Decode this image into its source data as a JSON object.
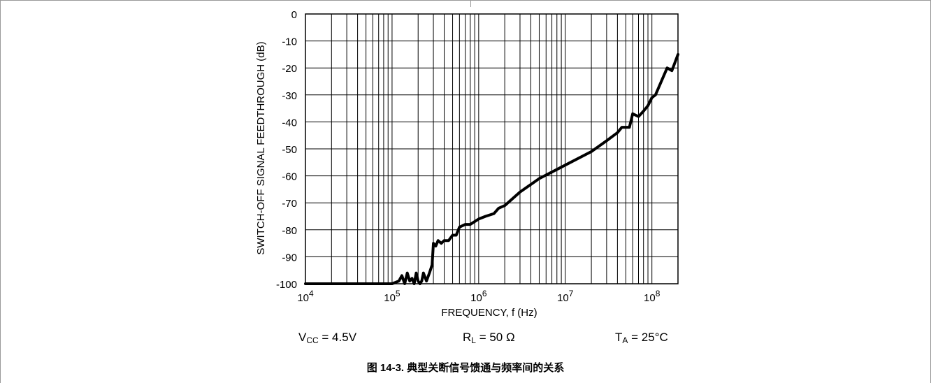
{
  "chart_data": {
    "type": "line",
    "title": "",
    "xlabel": "FREQUENCY, f (Hz)",
    "ylabel": "SWITCH-OFF SIGNAL FEEDTHROUGH (dB)",
    "x_scale": "log",
    "xlim": [
      10000,
      200000000
    ],
    "ylim": [
      -100,
      0
    ],
    "grid": true,
    "legend": "none",
    "x_ticks": [
      {
        "value": 10000,
        "base": "10",
        "exp": "4"
      },
      {
        "value": 100000,
        "base": "10",
        "exp": "5"
      },
      {
        "value": 1000000,
        "base": "10",
        "exp": "6"
      },
      {
        "value": 10000000,
        "base": "10",
        "exp": "7"
      },
      {
        "value": 100000000,
        "base": "10",
        "exp": "8"
      }
    ],
    "y_ticks": [
      "0",
      "-10",
      "-20",
      "-30",
      "-40",
      "-50",
      "-60",
      "-70",
      "-80",
      "-90",
      "-100"
    ],
    "y_tick_values": [
      0,
      -10,
      -20,
      -30,
      -40,
      -50,
      -60,
      -70,
      -80,
      -90,
      -100
    ],
    "series": [
      {
        "color": "#000000",
        "x": [
          10000,
          100000,
          120000,
          130000,
          140000,
          150000,
          160000,
          170000,
          180000,
          190000,
          200000,
          210000,
          220000,
          230000,
          250000,
          270000,
          290000,
          300000,
          320000,
          340000,
          370000,
          400000,
          450000,
          500000,
          550000,
          600000,
          700000,
          800000,
          1000000,
          1200000,
          1500000,
          1700000,
          2000000,
          3000000,
          5000000,
          10000000,
          20000000,
          30000000,
          40000000,
          45000000,
          55000000,
          60000000,
          70000000,
          80000000,
          90000000,
          100000000,
          110000000,
          150000000,
          170000000,
          200000000
        ],
        "y": [
          -100,
          -100,
          -99,
          -97,
          -100,
          -96,
          -99,
          -98,
          -100,
          -96,
          -99,
          -100,
          -99,
          -96,
          -99,
          -96,
          -93,
          -85,
          -86,
          -84,
          -85,
          -84,
          -84,
          -82,
          -82,
          -79,
          -78,
          -78,
          -76,
          -75,
          -74,
          -72,
          -71,
          -66,
          -61,
          -56,
          -51,
          -47,
          -44,
          -42,
          -42,
          -37,
          -38,
          -36,
          -34,
          -31,
          -30,
          -20,
          -21,
          -15
        ]
      }
    ]
  },
  "conditions": {
    "vcc": {
      "main": "V",
      "sub": "CC",
      "rest": " = 4.5V"
    },
    "rl": {
      "main": "R",
      "sub": "L",
      "rest": " = 50 Ω"
    },
    "ta": {
      "main": "T",
      "sub": "A",
      "rest": " = 25°C"
    }
  },
  "caption": "图 14-3. 典型关断信号馈通与频率间的关系",
  "colors": {
    "grid": "#000000",
    "line": "#000000",
    "background": "#ffffff",
    "frame": "#999999"
  }
}
